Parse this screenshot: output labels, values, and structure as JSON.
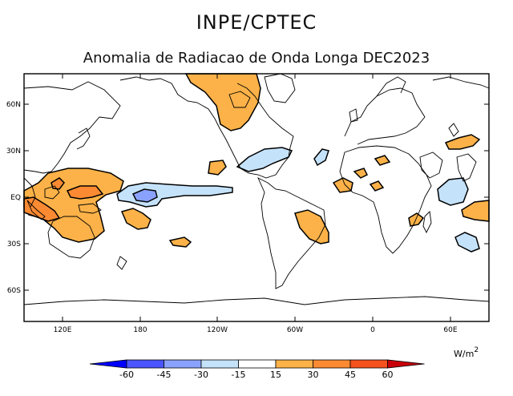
{
  "header": {
    "title": "INPE/CPTEC",
    "subtitle": "Anomalia de Radiacao de Onda Longa DEC2023"
  },
  "map": {
    "lat_labels": [
      "60N",
      "30N",
      "EQ",
      "30S",
      "60S"
    ],
    "lon_labels": [
      "120E",
      "180",
      "120W",
      "60W",
      "0",
      "60E"
    ]
  },
  "colorbar": {
    "units_base": "W/m",
    "units_exp": "2",
    "levels": [
      "-60",
      "-45",
      "-30",
      "-15",
      "15",
      "30",
      "45",
      "60"
    ],
    "colors": [
      "#0000ff",
      "#4a55ff",
      "#8aa2ff",
      "#c5e2fb",
      "#ffffff",
      "#fcb248",
      "#fb8a32",
      "#f5521e",
      "#c8000a"
    ]
  },
  "colors": {
    "anomaly_pos_30": "#fcb248",
    "anomaly_pos_45": "#fb8a32",
    "anomaly_neg_15": "#c5e2fb",
    "anomaly_neg_30": "#8aa2ff"
  }
}
